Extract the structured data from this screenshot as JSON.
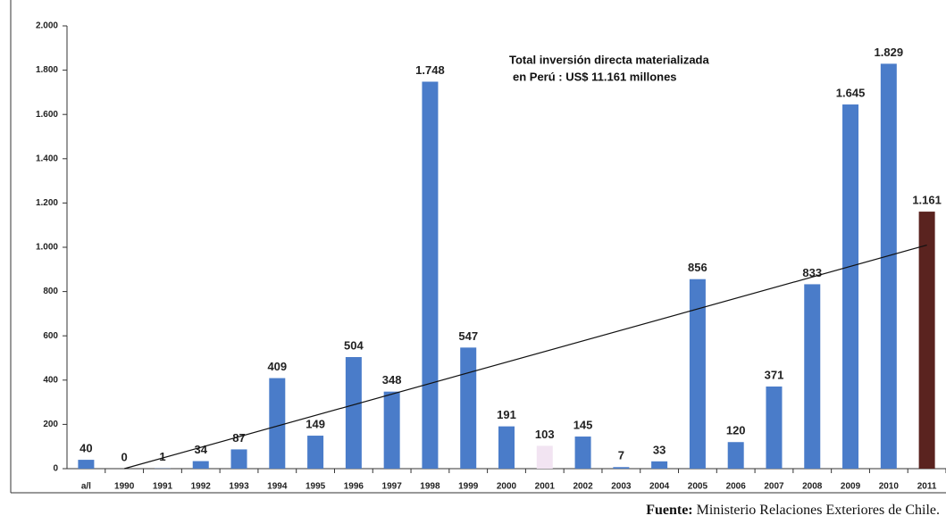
{
  "chart_data": {
    "type": "bar",
    "annotation": [
      "Total inversión directa materializada",
      "en Perú :  US$ 11.161 millones"
    ],
    "source_label": "Fuente:",
    "source": "Ministerio Relaciones Exteriores de Chile.",
    "categories": [
      "a/l",
      "1990",
      "1991",
      "1992",
      "1993",
      "1994",
      "1995",
      "1996",
      "1997",
      "1998",
      "1999",
      "2000",
      "2001",
      "2002",
      "2003",
      "2004",
      "2005",
      "2006",
      "2007",
      "2008",
      "2009",
      "2010",
      "2011"
    ],
    "values": [
      40,
      0,
      1,
      34,
      87,
      409,
      149,
      504,
      348,
      1748,
      547,
      191,
      103,
      145,
      7,
      33,
      856,
      120,
      371,
      833,
      1645,
      1829,
      1161
    ],
    "value_labels": [
      "40",
      "0",
      "1",
      "34",
      "87",
      "409",
      "149",
      "504",
      "348",
      "1.748",
      "547",
      "191",
      "103",
      "145",
      "7",
      "33",
      "856",
      "120",
      "371",
      "833",
      "1.645",
      "1.829",
      "1.161"
    ],
    "colors": [
      "#4a7cc9",
      "#4a7cc9",
      "#4a7cc9",
      "#4a7cc9",
      "#4a7cc9",
      "#4a7cc9",
      "#4a7cc9",
      "#4a7cc9",
      "#4a7cc9",
      "#4a7cc9",
      "#4a7cc9",
      "#4a7cc9",
      "#f2e4f2",
      "#4a7cc9",
      "#4a7cc9",
      "#4a7cc9",
      "#4a7cc9",
      "#4a7cc9",
      "#4a7cc9",
      "#4a7cc9",
      "#4a7cc9",
      "#4a7cc9",
      "#5a231f"
    ],
    "trendline": {
      "categories": [
        "1990",
        "2011"
      ],
      "values": [
        0,
        1010
      ]
    },
    "ylim": [
      0,
      2000
    ],
    "yticks": [
      0,
      200,
      400,
      600,
      800,
      {
        "value": 1000,
        "label": "1.000"
      },
      {
        "value": 1200,
        "label": "1.200"
      },
      {
        "value": 1400,
        "label": "1.400"
      },
      {
        "value": 1600,
        "label": "1.600"
      },
      {
        "value": 1800,
        "label": "1.800"
      },
      {
        "value": 2000,
        "label": "2.000"
      }
    ]
  }
}
